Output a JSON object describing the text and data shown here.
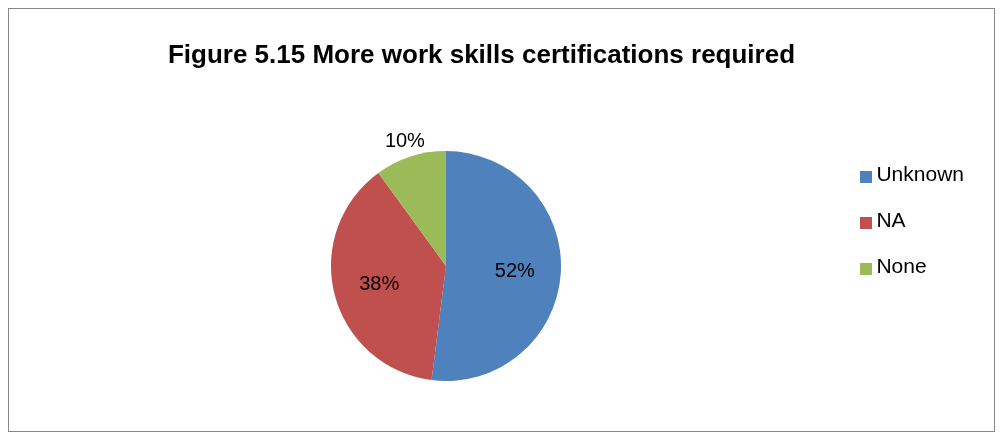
{
  "chart_data": {
    "type": "pie",
    "title": "Figure 5.15 More work skills certifications required",
    "categories": [
      "Unknown",
      "NA",
      "None"
    ],
    "values": [
      52,
      38,
      10
    ],
    "colors": [
      "#4f81bd",
      "#c0504d",
      "#9bbb59"
    ],
    "value_labels": [
      "52%",
      "38%",
      "10%"
    ],
    "legend": "right"
  }
}
